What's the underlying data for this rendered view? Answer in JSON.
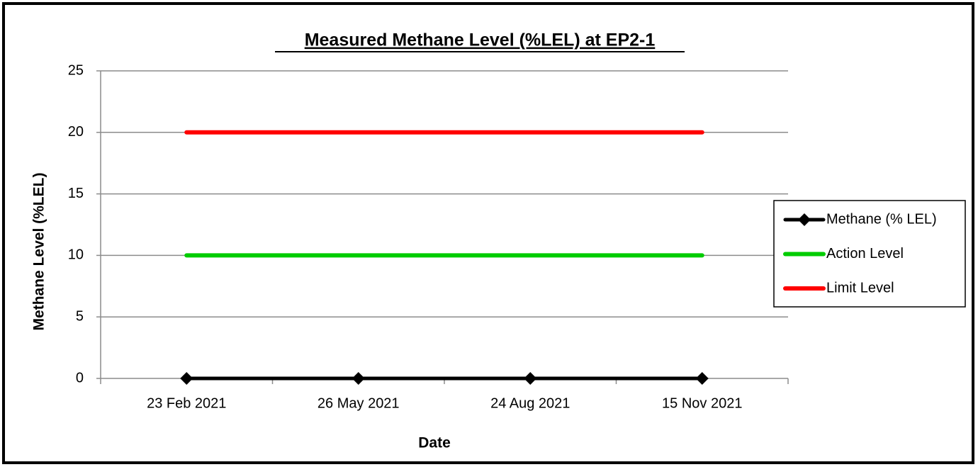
{
  "chart_data": {
    "type": "line",
    "title": "Measured Methane Level (%LEL) at EP2-1",
    "x_label": "Date",
    "y_label": "Methane Level (%LEL)",
    "categories": [
      "23 Feb 2021",
      "26 May 2021",
      "24 Aug 2021",
      "15 Nov 2021"
    ],
    "series": [
      {
        "name": "Methane (% LEL)",
        "color": "#000000",
        "marker": "diamond",
        "values": [
          0,
          0,
          0,
          0
        ]
      },
      {
        "name": "Action Level",
        "color": "#00cc00",
        "values": [
          10,
          10,
          10,
          10
        ]
      },
      {
        "name": "Limit Level",
        "color": "#ff0000",
        "values": [
          20,
          20,
          20,
          20
        ]
      }
    ],
    "ylim": [
      0,
      25
    ],
    "yticks": [
      0,
      5,
      10,
      15,
      20,
      25
    ],
    "grid": true,
    "legend": "right"
  }
}
